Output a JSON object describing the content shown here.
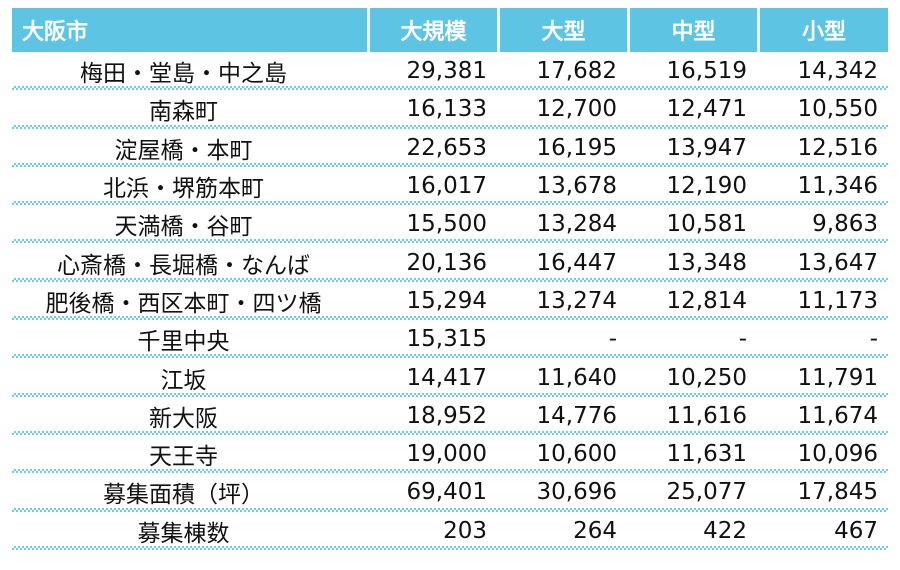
{
  "table": {
    "header": {
      "label": "大阪市",
      "columns": [
        "大規模",
        "大型",
        "中型",
        "小型"
      ]
    },
    "rows": [
      {
        "label": "梅田・堂島・中之島",
        "values": [
          "29,381",
          "17,682",
          "16,519",
          "14,342"
        ]
      },
      {
        "label": "南森町",
        "values": [
          "16,133",
          "12,700",
          "12,471",
          "10,550"
        ]
      },
      {
        "label": "淀屋橋・本町",
        "values": [
          "22,653",
          "16,195",
          "13,947",
          "12,516"
        ]
      },
      {
        "label": "北浜・堺筋本町",
        "values": [
          "16,017",
          "13,678",
          "12,190",
          "11,346"
        ]
      },
      {
        "label": "天満橋・谷町",
        "values": [
          "15,500",
          "13,284",
          "10,581",
          "9,863"
        ]
      },
      {
        "label": "心斎橋・長堀橋・なんば",
        "values": [
          "20,136",
          "16,447",
          "13,348",
          "13,647"
        ]
      },
      {
        "label": "肥後橋・西区本町・四ツ橋",
        "values": [
          "15,294",
          "13,274",
          "12,814",
          "11,173"
        ]
      },
      {
        "label": "千里中央",
        "values": [
          "15,315",
          "-",
          "-",
          "-"
        ]
      },
      {
        "label": "江坂",
        "values": [
          "14,417",
          "11,640",
          "10,250",
          "11,791"
        ]
      },
      {
        "label": "新大阪",
        "values": [
          "18,952",
          "14,776",
          "11,616",
          "11,674"
        ]
      },
      {
        "label": "天王寺",
        "values": [
          "19,000",
          "10,600",
          "11,631",
          "10,096"
        ]
      },
      {
        "label": "募集面積（坪）",
        "values": [
          "69,401",
          "30,696",
          "25,077",
          "17,845"
        ]
      },
      {
        "label": "募集棟数",
        "values": [
          "203",
          "264",
          "422",
          "467"
        ]
      }
    ]
  },
  "colors": {
    "header_bg": "#5ec4e4",
    "header_text": "#ffffff",
    "divider": "#6ecbe8"
  }
}
